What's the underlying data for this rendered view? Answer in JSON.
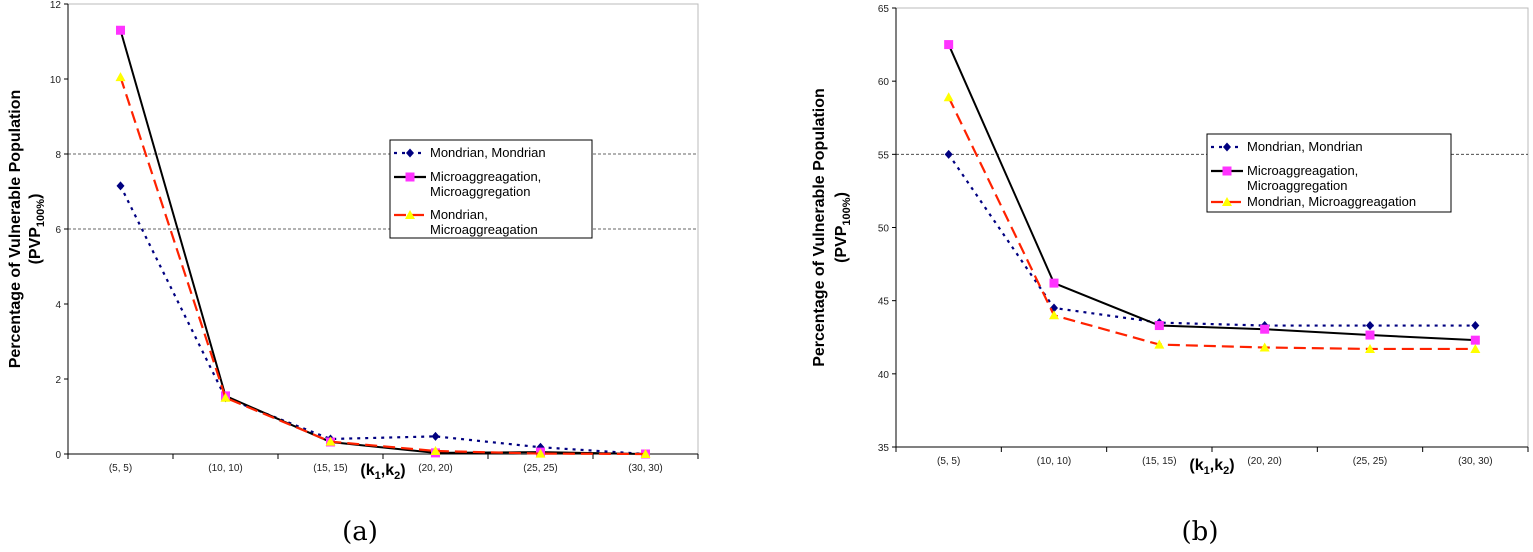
{
  "chart_data": [
    {
      "type": "line",
      "caption": "(a)",
      "ylabel": "Percentage of Vulnerable Population",
      "ylabel2_main": "(PVP",
      "ylabel2_sub": "100%",
      "ylabel2_end": ")",
      "xlabel_main": "(k",
      "xlabel_sub1": "1",
      "xlabel_mid": ",k",
      "xlabel_sub2": "2",
      "xlabel_end": ")",
      "categories": [
        "(5, 5)",
        "(10, 10)",
        "(15, 15)",
        "(20, 20)",
        "(25, 25)",
        "(30, 30)"
      ],
      "ylim": [
        0,
        12
      ],
      "yticks": [
        0,
        2,
        4,
        6,
        8,
        10,
        12
      ],
      "gridlines": [
        6,
        8
      ],
      "legend_placement": "center-right",
      "legend_lines": [
        [
          "Mondrian, Mondrian"
        ],
        [
          "Microaggreagation,",
          "Microaggregation"
        ],
        [
          "Mondrian,",
          "Microaggreagation"
        ]
      ],
      "series": [
        {
          "name": "Mondrian, Mondrian",
          "values": [
            7.15,
            1.5,
            0.4,
            0.47,
            0.18,
            0.0
          ],
          "color": "#000080",
          "marker": "diamond",
          "dash": "dotted"
        },
        {
          "name": "Microaggreagation, Microaggregation",
          "values": [
            11.3,
            1.55,
            0.32,
            0.03,
            0.05,
            0.0
          ],
          "color": "#000000",
          "marker": "square",
          "marker_color": "#ff33ff",
          "dash": "solid"
        },
        {
          "name": "Mondrian, Microaggreagation",
          "values": [
            10.05,
            1.5,
            0.33,
            0.08,
            0.01,
            0.0
          ],
          "color": "#ff2200",
          "marker": "triangle",
          "marker_color": "#ffff00",
          "dash": "dashed"
        }
      ]
    },
    {
      "type": "line",
      "caption": "(b)",
      "ylabel": "Percentage of Vulnerable Population",
      "ylabel2_main": "(PVP",
      "ylabel2_sub": "100%",
      "ylabel2_end": ")",
      "xlabel_main": "(k",
      "xlabel_sub1": "1",
      "xlabel_mid": ",k",
      "xlabel_sub2": "2",
      "xlabel_end": ")",
      "categories": [
        "(5, 5)",
        "(10, 10)",
        "(15, 15)",
        "(20, 20)",
        "(25, 25)",
        "(30, 30)"
      ],
      "ylim": [
        35,
        65
      ],
      "yticks": [
        35,
        40,
        45,
        50,
        55,
        60,
        65
      ],
      "gridlines": [
        55
      ],
      "legend_placement": "center-right",
      "legend_lines": [
        [
          "Mondrian, Mondrian"
        ],
        [
          "Microaggreagation,",
          "Microaggregation"
        ],
        [
          "Mondrian, Microaggreagation"
        ]
      ],
      "series": [
        {
          "name": "Mondrian, Mondrian",
          "values": [
            55.0,
            44.5,
            43.5,
            43.3,
            43.3,
            43.3
          ],
          "color": "#000080",
          "marker": "diamond",
          "dash": "dotted"
        },
        {
          "name": "Microaggreagation, Microaggregation",
          "values": [
            62.5,
            46.2,
            43.3,
            43.05,
            42.65,
            42.3
          ],
          "color": "#000000",
          "marker": "square",
          "marker_color": "#ff33ff",
          "dash": "solid"
        },
        {
          "name": "Mondrian, Microaggreagation",
          "values": [
            58.9,
            44.0,
            42.0,
            41.8,
            41.7,
            41.7
          ],
          "color": "#ff2200",
          "marker": "triangle",
          "marker_color": "#ffff00",
          "dash": "dashed"
        }
      ]
    }
  ]
}
